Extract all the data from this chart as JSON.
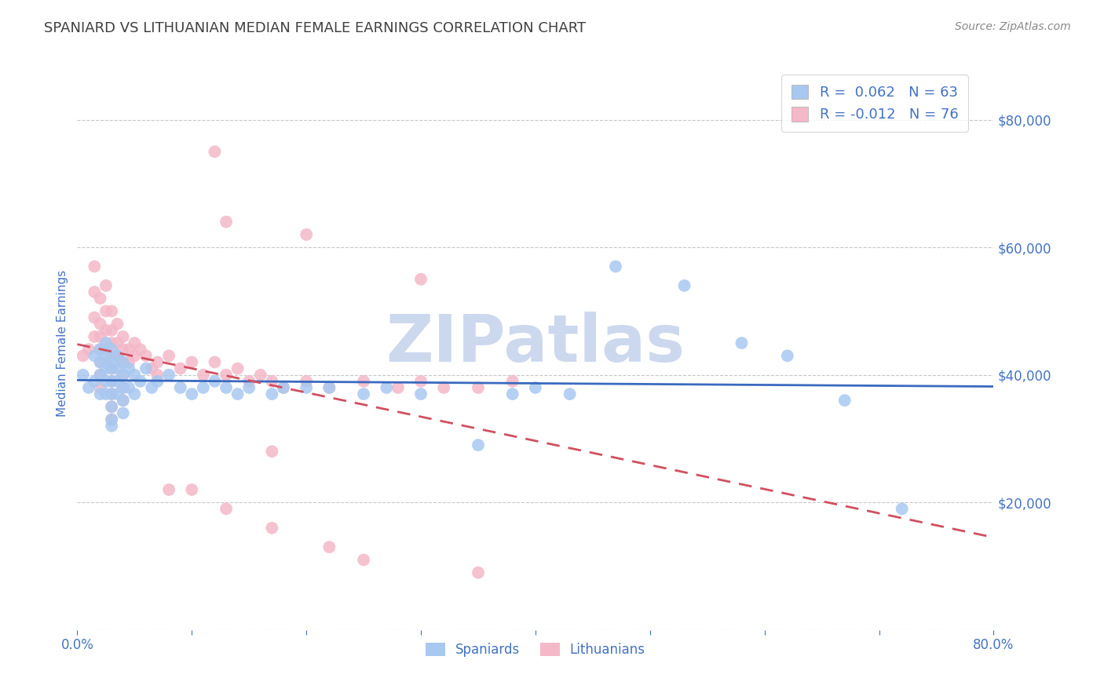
{
  "title": "SPANIARD VS LITHUANIAN MEDIAN FEMALE EARNINGS CORRELATION CHART",
  "source_text": "Source: ZipAtlas.com",
  "ylabel": "Median Female Earnings",
  "xlim": [
    0.0,
    0.8
  ],
  "ylim": [
    0,
    90000
  ],
  "yticks": [
    0,
    20000,
    40000,
    60000,
    80000
  ],
  "xticks": [
    0.0,
    0.1,
    0.2,
    0.3,
    0.4,
    0.5,
    0.6,
    0.7,
    0.8
  ],
  "spaniards_R": 0.062,
  "spaniards_N": 63,
  "lithuanians_R": -0.012,
  "lithuanians_N": 76,
  "spaniard_color": "#a8c8f0",
  "lithuanian_color": "#f4b8c8",
  "spaniard_line_color": "#3a6abf",
  "lithuanian_line_color": "#d05060",
  "axis_color": "#4472c4",
  "title_color": "#404040",
  "watermark_color": "#ccd8ee",
  "background_color": "#ffffff",
  "spaniards_x": [
    0.005,
    0.01,
    0.015,
    0.015,
    0.02,
    0.02,
    0.02,
    0.02,
    0.025,
    0.025,
    0.025,
    0.025,
    0.025,
    0.03,
    0.03,
    0.03,
    0.03,
    0.03,
    0.03,
    0.03,
    0.03,
    0.035,
    0.035,
    0.035,
    0.035,
    0.04,
    0.04,
    0.04,
    0.04,
    0.04,
    0.045,
    0.045,
    0.05,
    0.05,
    0.055,
    0.06,
    0.065,
    0.07,
    0.08,
    0.09,
    0.1,
    0.11,
    0.12,
    0.13,
    0.14,
    0.15,
    0.17,
    0.18,
    0.2,
    0.22,
    0.25,
    0.27,
    0.3,
    0.35,
    0.38,
    0.4,
    0.43,
    0.47,
    0.53,
    0.58,
    0.62,
    0.67,
    0.72
  ],
  "spaniards_y": [
    40000,
    38000,
    43000,
    39000,
    44000,
    42000,
    40000,
    37000,
    45000,
    43000,
    41000,
    39000,
    37000,
    44000,
    42000,
    41000,
    39000,
    37000,
    35000,
    33000,
    32000,
    43000,
    41000,
    39000,
    37000,
    42000,
    40000,
    38000,
    36000,
    34000,
    41000,
    38000,
    40000,
    37000,
    39000,
    41000,
    38000,
    39000,
    40000,
    38000,
    37000,
    38000,
    39000,
    38000,
    37000,
    38000,
    37000,
    38000,
    38000,
    38000,
    37000,
    38000,
    37000,
    29000,
    37000,
    38000,
    37000,
    57000,
    54000,
    45000,
    43000,
    36000,
    19000
  ],
  "lithuanians_x": [
    0.005,
    0.01,
    0.015,
    0.015,
    0.015,
    0.015,
    0.02,
    0.02,
    0.02,
    0.02,
    0.02,
    0.02,
    0.02,
    0.025,
    0.025,
    0.025,
    0.025,
    0.025,
    0.03,
    0.03,
    0.03,
    0.03,
    0.03,
    0.03,
    0.03,
    0.03,
    0.03,
    0.035,
    0.035,
    0.035,
    0.04,
    0.04,
    0.04,
    0.04,
    0.04,
    0.04,
    0.045,
    0.045,
    0.05,
    0.05,
    0.055,
    0.06,
    0.065,
    0.07,
    0.07,
    0.08,
    0.09,
    0.1,
    0.11,
    0.12,
    0.13,
    0.14,
    0.15,
    0.16,
    0.17,
    0.18,
    0.2,
    0.22,
    0.25,
    0.28,
    0.3,
    0.32,
    0.35,
    0.38,
    0.12,
    0.2,
    0.13,
    0.3,
    0.17,
    0.1,
    0.13,
    0.17,
    0.22,
    0.08,
    0.25,
    0.35
  ],
  "lithuanians_y": [
    43000,
    44000,
    57000,
    53000,
    49000,
    46000,
    52000,
    48000,
    46000,
    44000,
    42000,
    40000,
    38000,
    54000,
    50000,
    47000,
    44000,
    42000,
    50000,
    47000,
    45000,
    43000,
    41000,
    39000,
    37000,
    35000,
    33000,
    48000,
    45000,
    43000,
    46000,
    44000,
    42000,
    40000,
    38000,
    36000,
    44000,
    42000,
    45000,
    43000,
    44000,
    43000,
    41000,
    42000,
    40000,
    43000,
    41000,
    42000,
    40000,
    42000,
    40000,
    41000,
    39000,
    40000,
    39000,
    38000,
    39000,
    38000,
    39000,
    38000,
    39000,
    38000,
    38000,
    39000,
    75000,
    62000,
    64000,
    55000,
    28000,
    22000,
    19000,
    16000,
    13000,
    22000,
    11000,
    9000
  ]
}
